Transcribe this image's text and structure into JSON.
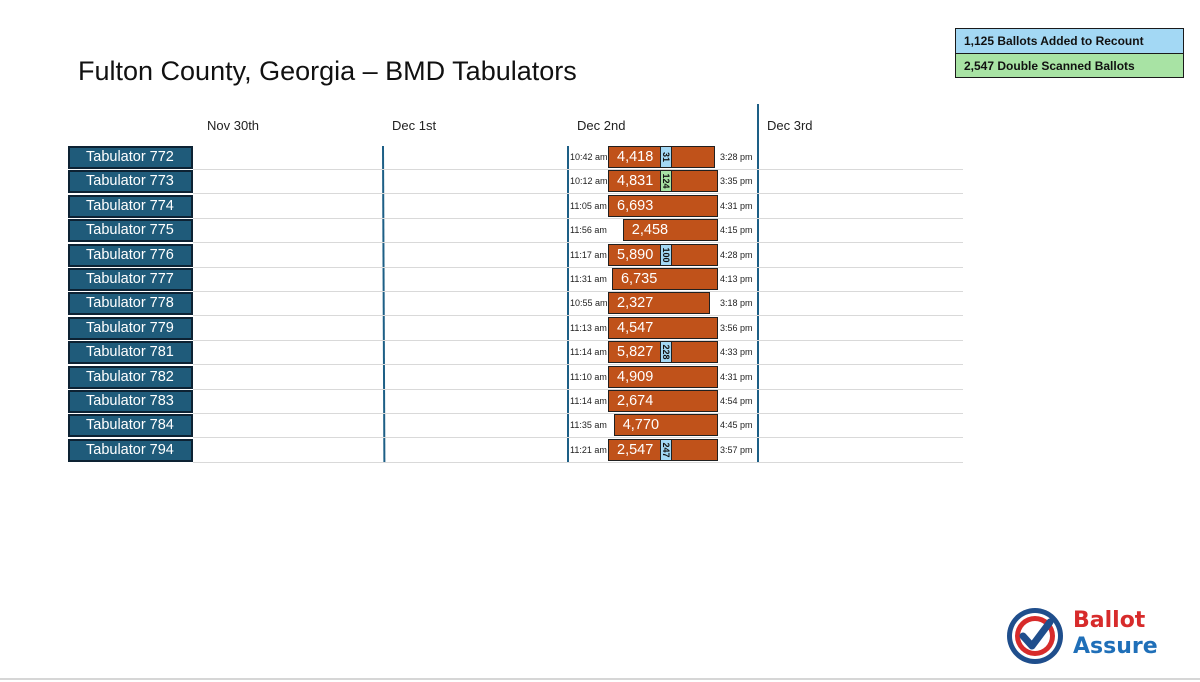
{
  "title": "Fulton County, Georgia – BMD Tabulators",
  "legend": [
    {
      "label": "1,125 Ballots Added to Recount",
      "color": "#a3d8f4"
    },
    {
      "label": "2,547 Double Scanned Ballots",
      "color": "#a8e3a4"
    }
  ],
  "days": [
    "Nov 30th",
    "Dec 1st",
    "Dec 2nd",
    "Dec 3rd"
  ],
  "colors": {
    "tab": "#1f5b7a",
    "bar": "#c0521a",
    "recount": "#a3d8f4",
    "double": "#a8e3a4",
    "divider": "#1d5f86"
  },
  "chart_data": {
    "type": "bar",
    "orientation": "horizontal-timeline",
    "time_range": [
      "10:00 am",
      "5:00 pm"
    ],
    "rows": [
      {
        "tabulator": "Tabulator 772",
        "start": "10:42 am",
        "end": "3:28 pm",
        "ballots": "4,418",
        "extra": "31",
        "extra_kind": "recount"
      },
      {
        "tabulator": "Tabulator 773",
        "start": "10:12 am",
        "end": "3:35 pm",
        "ballots": "4,831",
        "extra": "124",
        "extra_kind": "double"
      },
      {
        "tabulator": "Tabulator 774",
        "start": "11:05 am",
        "end": "4:31 pm",
        "ballots": "6,693",
        "extra": "",
        "extra_kind": ""
      },
      {
        "tabulator": "Tabulator 775",
        "start": "11:56 am",
        "end": "4:15 pm",
        "ballots": "2,458",
        "extra": "",
        "extra_kind": ""
      },
      {
        "tabulator": "Tabulator 776",
        "start": "11:17 am",
        "end": "4:28 pm",
        "ballots": "5,890",
        "extra": "100",
        "extra_kind": "recount"
      },
      {
        "tabulator": "Tabulator 777",
        "start": "11:31 am",
        "end": "4:13 pm",
        "ballots": "6,735",
        "extra": "",
        "extra_kind": ""
      },
      {
        "tabulator": "Tabulator 778",
        "start": "10:55 am",
        "end": "3:18 pm",
        "ballots": "2,327",
        "extra": "",
        "extra_kind": ""
      },
      {
        "tabulator": "Tabulator 779",
        "start": "11:13 am",
        "end": "3:56 pm",
        "ballots": "4,547",
        "extra": "",
        "extra_kind": ""
      },
      {
        "tabulator": "Tabulator 781",
        "start": "11:14 am",
        "end": "4:33 pm",
        "ballots": "5,827",
        "extra": "228",
        "extra_kind": "recount"
      },
      {
        "tabulator": "Tabulator 782",
        "start": "11:10 am",
        "end": "4:31 pm",
        "ballots": "4,909",
        "extra": "",
        "extra_kind": ""
      },
      {
        "tabulator": "Tabulator 783",
        "start": "11:14 am",
        "end": "4:54 pm",
        "ballots": "2,674",
        "extra": "",
        "extra_kind": ""
      },
      {
        "tabulator": "Tabulator 784",
        "start": "11:35 am",
        "end": "4:45 pm",
        "ballots": "4,770",
        "extra": "",
        "extra_kind": ""
      },
      {
        "tabulator": "Tabulator 794",
        "start": "11:21 am",
        "end": "3:57 pm",
        "ballots": "2,547",
        "extra": "247",
        "extra_kind": "recount"
      }
    ]
  },
  "logo": {
    "line1": "Ballot",
    "line2": "Assure",
    "icon": "checkmark-seal-icon"
  }
}
